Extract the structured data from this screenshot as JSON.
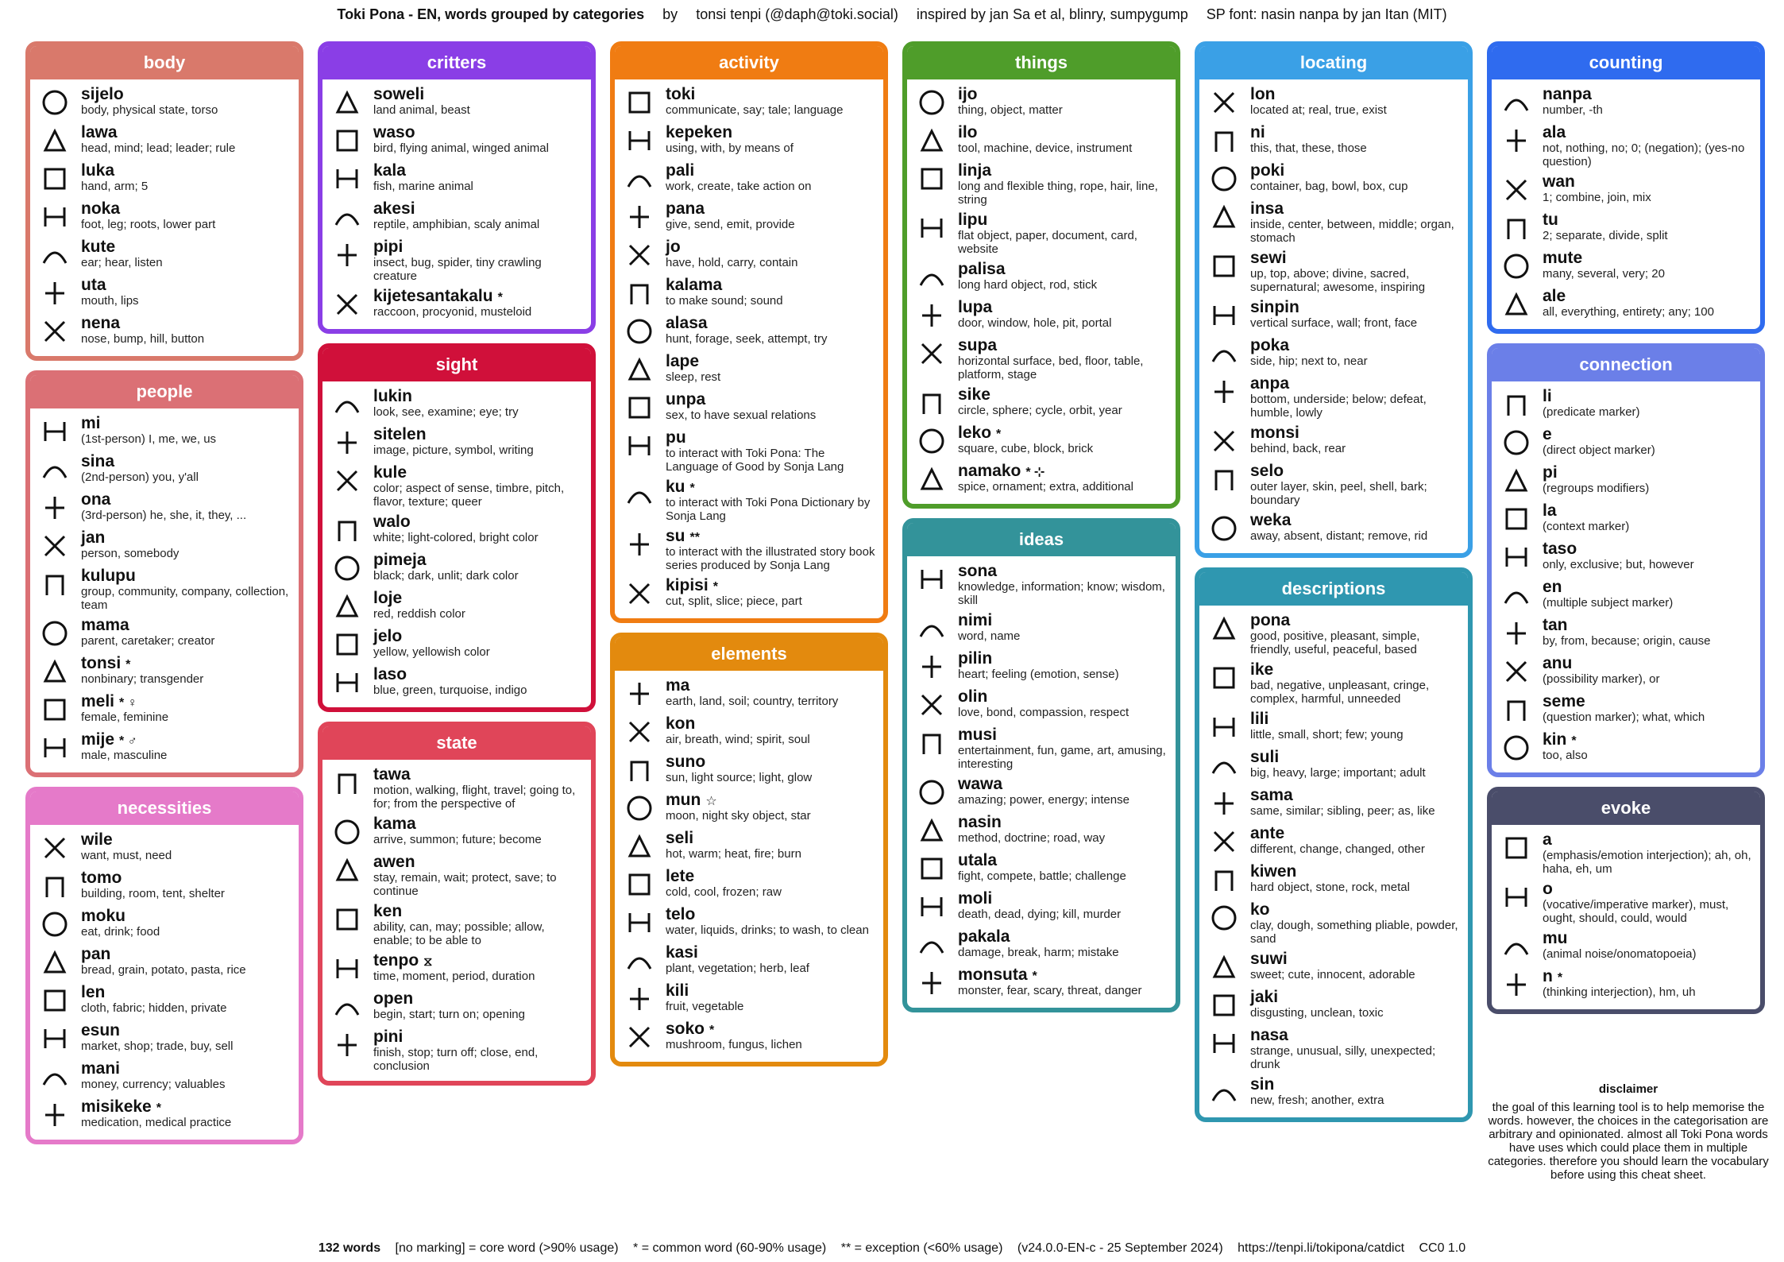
{
  "header": {
    "title": "Toki Pona - EN, words grouped by categories",
    "by": "by",
    "author": "tonsi tenpi (@daph@toki.social)",
    "inspired": "inspired by jan Sa et al, blinry, sumpygump",
    "font": "SP font: nasin nanpa by jan Itan (MIT)"
  },
  "categories": [
    {
      "id": "body",
      "title": "body",
      "color": "#d9796b",
      "col": 0,
      "words": [
        {
          "w": "sijelo",
          "m": "",
          "d": "body, physical state, torso"
        },
        {
          "w": "lawa",
          "m": "",
          "d": "head, mind; lead; leader; rule"
        },
        {
          "w": "luka",
          "m": "",
          "d": "hand, arm; 5"
        },
        {
          "w": "noka",
          "m": "",
          "d": "foot, leg; roots, lower part"
        },
        {
          "w": "kute",
          "m": "",
          "d": "ear; hear, listen"
        },
        {
          "w": "uta",
          "m": "",
          "d": "mouth, lips"
        },
        {
          "w": "nena",
          "m": "",
          "d": "nose, bump, hill, button"
        }
      ]
    },
    {
      "id": "people",
      "title": "people",
      "color": "#db7075",
      "col": 0,
      "words": [
        {
          "w": "mi",
          "m": "",
          "d": "(1st-person) I, me, we, us"
        },
        {
          "w": "sina",
          "m": "",
          "d": "(2nd-person) you, y'all"
        },
        {
          "w": "ona",
          "m": "",
          "d": "(3rd-person) he, she, it, they, ..."
        },
        {
          "w": "jan",
          "m": "",
          "d": "person, somebody"
        },
        {
          "w": "kulupu",
          "m": "",
          "d": "group, community, company, collection, team"
        },
        {
          "w": "mama",
          "m": "",
          "d": "parent, caretaker; creator"
        },
        {
          "w": "tonsi",
          "m": "*",
          "d": "nonbinary; transgender"
        },
        {
          "w": "meli",
          "m": "* ♀",
          "d": "female, feminine"
        },
        {
          "w": "mije",
          "m": "* ♂",
          "d": "male, masculine"
        }
      ]
    },
    {
      "id": "necessities",
      "title": "necessities",
      "color": "#e57ac9",
      "col": 0,
      "words": [
        {
          "w": "wile",
          "m": "",
          "d": "want, must, need"
        },
        {
          "w": "tomo",
          "m": "",
          "d": "building, room, tent, shelter"
        },
        {
          "w": "moku",
          "m": "",
          "d": "eat, drink; food"
        },
        {
          "w": "pan",
          "m": "",
          "d": "bread, grain, potato, pasta, rice"
        },
        {
          "w": "len",
          "m": "",
          "d": "cloth, fabric; hidden, private"
        },
        {
          "w": "esun",
          "m": "",
          "d": "market, shop; trade, buy, sell"
        },
        {
          "w": "mani",
          "m": "",
          "d": "money, currency; valuables"
        },
        {
          "w": "misikeke",
          "m": "*",
          "d": "medication, medical practice"
        }
      ]
    },
    {
      "id": "critters",
      "title": "critters",
      "color": "#8a3ee6",
      "col": 1,
      "words": [
        {
          "w": "soweli",
          "m": "",
          "d": "land animal, beast"
        },
        {
          "w": "waso",
          "m": "",
          "d": "bird, flying animal, winged animal"
        },
        {
          "w": "kala",
          "m": "",
          "d": "fish, marine animal"
        },
        {
          "w": "akesi",
          "m": "",
          "d": "reptile, amphibian, scaly animal"
        },
        {
          "w": "pipi",
          "m": "",
          "d": "insect, bug, spider, tiny crawling creature"
        },
        {
          "w": "kijetesantakalu",
          "m": "*",
          "d": "raccoon, procyonid, musteloid"
        }
      ]
    },
    {
      "id": "sight",
      "title": "sight",
      "color": "#d0103a",
      "col": 1,
      "words": [
        {
          "w": "lukin",
          "m": "",
          "d": "look, see, examine; eye; try"
        },
        {
          "w": "sitelen",
          "m": "",
          "d": "image, picture, symbol, writing"
        },
        {
          "w": "kule",
          "m": "",
          "d": "color; aspect of sense, timbre, pitch, flavor, texture; queer"
        },
        {
          "w": "walo",
          "m": "",
          "d": "white; light-colored, bright color"
        },
        {
          "w": "pimeja",
          "m": "",
          "d": "black; dark, unlit; dark color"
        },
        {
          "w": "loje",
          "m": "",
          "d": "red, reddish color"
        },
        {
          "w": "jelo",
          "m": "",
          "d": "yellow, yellowish color"
        },
        {
          "w": "laso",
          "m": "",
          "d": "blue, green, turquoise, indigo"
        }
      ]
    },
    {
      "id": "state",
      "title": "state",
      "color": "#e04559",
      "col": 1,
      "words": [
        {
          "w": "tawa",
          "m": "",
          "d": "motion, walking, flight, travel; going to, for; from the perspective of"
        },
        {
          "w": "kama",
          "m": "",
          "d": "arrive, summon; future; become"
        },
        {
          "w": "awen",
          "m": "",
          "d": "stay, remain, wait; protect, save; to continue"
        },
        {
          "w": "ken",
          "m": "",
          "d": "ability, can, may; possible; allow, enable; to be able to"
        },
        {
          "w": "tenpo",
          "m": "⧖",
          "d": "time, moment, period, duration"
        },
        {
          "w": "open",
          "m": "",
          "d": "begin, start; turn on; opening"
        },
        {
          "w": "pini",
          "m": "",
          "d": "finish, stop; turn off; close, end, conclusion"
        }
      ]
    },
    {
      "id": "activity",
      "title": "activity",
      "color": "#f07c12",
      "col": 2,
      "words": [
        {
          "w": "toki",
          "m": "",
          "d": "communicate, say; tale; language"
        },
        {
          "w": "kepeken",
          "m": "",
          "d": "using, with, by means of"
        },
        {
          "w": "pali",
          "m": "",
          "d": "work, create, take action on"
        },
        {
          "w": "pana",
          "m": "",
          "d": "give, send, emit, provide"
        },
        {
          "w": "jo",
          "m": "",
          "d": "have, hold, carry, contain"
        },
        {
          "w": "kalama",
          "m": "",
          "d": "to make sound; sound"
        },
        {
          "w": "alasa",
          "m": "",
          "d": "hunt, forage, seek, attempt, try"
        },
        {
          "w": "lape",
          "m": "",
          "d": "sleep, rest"
        },
        {
          "w": "unpa",
          "m": "",
          "d": "sex, to have sexual relations"
        },
        {
          "w": "pu",
          "m": "",
          "d": "to interact with Toki Pona: The Language of Good by Sonja Lang"
        },
        {
          "w": "ku",
          "m": "*",
          "d": "to interact with Toki Pona Dictionary by Sonja Lang"
        },
        {
          "w": "su",
          "m": "**",
          "d": "to interact with the illustrated story book series produced by Sonja Lang"
        },
        {
          "w": "kipisi",
          "m": "*",
          "d": "cut, split, slice; piece, part"
        }
      ]
    },
    {
      "id": "elements",
      "title": "elements",
      "color": "#e38a0e",
      "col": 2,
      "words": [
        {
          "w": "ma",
          "m": "",
          "d": "earth, land, soil; country, territory"
        },
        {
          "w": "kon",
          "m": "",
          "d": "air, breath, wind; spirit, soul"
        },
        {
          "w": "suno",
          "m": "",
          "d": "sun, light source; light, glow"
        },
        {
          "w": "mun",
          "m": "☆",
          "d": "moon, night sky object, star"
        },
        {
          "w": "seli",
          "m": "",
          "d": "hot, warm; heat, fire; burn"
        },
        {
          "w": "lete",
          "m": "",
          "d": "cold, cool, frozen; raw"
        },
        {
          "w": "telo",
          "m": "",
          "d": "water, liquids, drinks; to wash, to clean"
        },
        {
          "w": "kasi",
          "m": "",
          "d": "plant, vegetation; herb, leaf"
        },
        {
          "w": "kili",
          "m": "",
          "d": "fruit, vegetable"
        },
        {
          "w": "soko",
          "m": "*",
          "d": "mushroom, fungus, lichen"
        }
      ]
    },
    {
      "id": "things",
      "title": "things",
      "color": "#4f9d2a",
      "col": 3,
      "words": [
        {
          "w": "ijo",
          "m": "",
          "d": "thing, object, matter"
        },
        {
          "w": "ilo",
          "m": "",
          "d": "tool, machine, device, instrument"
        },
        {
          "w": "linja",
          "m": "",
          "d": "long and flexible thing, rope, hair, line, string"
        },
        {
          "w": "lipu",
          "m": "",
          "d": "flat object, paper, document, card, website"
        },
        {
          "w": "palisa",
          "m": "",
          "d": "long hard object, rod, stick"
        },
        {
          "w": "lupa",
          "m": "",
          "d": "door, window, hole, pit, portal"
        },
        {
          "w": "supa",
          "m": "",
          "d": "horizontal surface, bed, floor, table, platform, stage"
        },
        {
          "w": "sike",
          "m": "",
          "d": "circle, sphere; cycle, orbit, year"
        },
        {
          "w": "leko",
          "m": "*",
          "d": "square, cube, block, brick"
        },
        {
          "w": "namako",
          "m": "* ⊹",
          "d": "spice, ornament; extra, additional"
        }
      ]
    },
    {
      "id": "ideas",
      "title": "ideas",
      "color": "#33939a",
      "col": 3,
      "words": [
        {
          "w": "sona",
          "m": "",
          "d": "knowledge, information; know; wisdom, skill"
        },
        {
          "w": "nimi",
          "m": "",
          "d": "word, name"
        },
        {
          "w": "pilin",
          "m": "",
          "d": "heart; feeling (emotion, sense)"
        },
        {
          "w": "olin",
          "m": "",
          "d": "love, bond, compassion, respect"
        },
        {
          "w": "musi",
          "m": "",
          "d": "entertainment, fun, game, art, amusing, interesting"
        },
        {
          "w": "wawa",
          "m": "",
          "d": "amazing; power, energy; intense"
        },
        {
          "w": "nasin",
          "m": "",
          "d": "method, doctrine; road, way"
        },
        {
          "w": "utala",
          "m": "",
          "d": "fight, compete, battle; challenge"
        },
        {
          "w": "moli",
          "m": "",
          "d": "death, dead, dying; kill, murder"
        },
        {
          "w": "pakala",
          "m": "",
          "d": "damage, break, harm; mistake"
        },
        {
          "w": "monsuta",
          "m": "*",
          "d": "monster, fear, scary, threat, danger"
        }
      ]
    },
    {
      "id": "locating",
      "title": "locating",
      "color": "#3aa0e6",
      "col": 4,
      "words": [
        {
          "w": "lon",
          "m": "",
          "d": "located at; real, true, exist"
        },
        {
          "w": "ni",
          "m": "",
          "d": "this, that, these, those"
        },
        {
          "w": "poki",
          "m": "",
          "d": "container, bag, bowl, box, cup"
        },
        {
          "w": "insa",
          "m": "",
          "d": "inside, center, between, middle; organ, stomach"
        },
        {
          "w": "sewi",
          "m": "",
          "d": "up, top, above; divine, sacred, supernatural; awesome, inspiring"
        },
        {
          "w": "sinpin",
          "m": "",
          "d": "vertical surface, wall; front, face"
        },
        {
          "w": "poka",
          "m": "",
          "d": "side, hip; next to, near"
        },
        {
          "w": "anpa",
          "m": "",
          "d": "bottom, underside; below; defeat, humble, lowly"
        },
        {
          "w": "monsi",
          "m": "",
          "d": "behind, back, rear"
        },
        {
          "w": "selo",
          "m": "",
          "d": "outer layer, skin, peel, shell, bark; boundary"
        },
        {
          "w": "weka",
          "m": "",
          "d": "away, absent, distant; remove, rid"
        }
      ]
    },
    {
      "id": "descriptions",
      "title": "descriptions",
      "color": "#2f97b0",
      "col": 4,
      "words": [
        {
          "w": "pona",
          "m": "",
          "d": "good, positive, pleasant, simple, friendly, useful, peaceful, based"
        },
        {
          "w": "ike",
          "m": "",
          "d": "bad, negative, unpleasant, cringe, complex, harmful, unneeded"
        },
        {
          "w": "lili",
          "m": "",
          "d": "little, small, short; few; young"
        },
        {
          "w": "suli",
          "m": "",
          "d": "big, heavy, large; important; adult"
        },
        {
          "w": "sama",
          "m": "",
          "d": "same, similar; sibling, peer; as, like"
        },
        {
          "w": "ante",
          "m": "",
          "d": "different, change, changed, other"
        },
        {
          "w": "kiwen",
          "m": "",
          "d": "hard object, stone, rock, metal"
        },
        {
          "w": "ko",
          "m": "",
          "d": "clay, dough, something pliable, powder, sand"
        },
        {
          "w": "suwi",
          "m": "",
          "d": "sweet; cute, innocent, adorable"
        },
        {
          "w": "jaki",
          "m": "",
          "d": "disgusting, unclean, toxic"
        },
        {
          "w": "nasa",
          "m": "",
          "d": "strange, unusual, silly, unexpected; drunk"
        },
        {
          "w": "sin",
          "m": "",
          "d": "new, fresh; another, extra"
        }
      ]
    },
    {
      "id": "counting",
      "title": "counting",
      "color": "#2f6bef",
      "col": 5,
      "words": [
        {
          "w": "nanpa",
          "m": "",
          "d": "number, -th"
        },
        {
          "w": "ala",
          "m": "",
          "d": "not, nothing, no; 0; (negation); (yes-no question)"
        },
        {
          "w": "wan",
          "m": "",
          "d": "1; combine, join, mix"
        },
        {
          "w": "tu",
          "m": "",
          "d": "2; separate, divide, split"
        },
        {
          "w": "mute",
          "m": "",
          "d": "many, several, very; 20"
        },
        {
          "w": "ale",
          "m": "",
          "d": "all, everything, entirety; any; 100"
        }
      ]
    },
    {
      "id": "connection",
      "title": "connection",
      "color": "#6b7fe8",
      "col": 5,
      "words": [
        {
          "w": "li",
          "m": "",
          "d": "(predicate marker)"
        },
        {
          "w": "e",
          "m": "",
          "d": "(direct object marker)"
        },
        {
          "w": "pi",
          "m": "",
          "d": "(regroups modifiers)"
        },
        {
          "w": "la",
          "m": "",
          "d": "(context marker)"
        },
        {
          "w": "taso",
          "m": "",
          "d": "only, exclusive; but, however"
        },
        {
          "w": "en",
          "m": "",
          "d": "(multiple subject marker)"
        },
        {
          "w": "tan",
          "m": "",
          "d": "by, from, because; origin, cause"
        },
        {
          "w": "anu",
          "m": "",
          "d": "(possibility marker), or"
        },
        {
          "w": "seme",
          "m": "",
          "d": "(question marker); what, which"
        },
        {
          "w": "kin",
          "m": "*",
          "d": "too, also"
        }
      ]
    },
    {
      "id": "evoke",
      "title": "evoke",
      "color": "#4a4d6a",
      "col": 5,
      "words": [
        {
          "w": "a",
          "m": "",
          "d": "(emphasis/emotion interjection); ah, oh, haha, eh, um"
        },
        {
          "w": "o",
          "m": "",
          "d": "(vocative/imperative marker), must, ought, should, could, would"
        },
        {
          "w": "mu",
          "m": "",
          "d": "(animal noise/onomatopoeia)"
        },
        {
          "w": "n",
          "m": "*",
          "d": "(thinking interjection), hm, uh"
        }
      ]
    }
  ],
  "disclaimer": {
    "title": "disclaimer",
    "text": "the goal of this learning tool is to help memorise the words. however, the choices in the categorisation are arbitrary and opinionated. almost all Toki Pona words have uses which could place them in multiple categories. therefore you should learn the vocabulary before using this cheat sheet."
  },
  "footer": {
    "count": "132 words",
    "core": "[no marking] = core word (>90% usage)",
    "common": "* = common word (60-90% usage)",
    "exception": "** = exception (<60% usage)",
    "version": "(v24.0.0-EN-c - 25 September 2024)",
    "url": "https://tenpi.li/tokipona/catdict",
    "license": "CC0 1.0"
  }
}
